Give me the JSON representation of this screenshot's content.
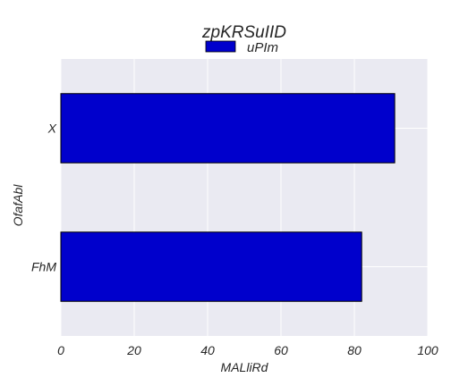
{
  "chart_data": {
    "type": "bar",
    "orientation": "horizontal",
    "title": "zpKRSuIID",
    "xlabel": "MALliRd",
    "ylabel": "OfafAbl",
    "categories": [
      "X",
      "FhM"
    ],
    "series": [
      {
        "name": "uPIm",
        "values": [
          91,
          82
        ],
        "color": "#0000cc"
      }
    ],
    "xlim": [
      0,
      100
    ],
    "xticks": [
      0,
      20,
      40,
      60,
      80,
      100
    ],
    "grid": true,
    "legend": "top-center",
    "background": "#eaeaf2"
  }
}
